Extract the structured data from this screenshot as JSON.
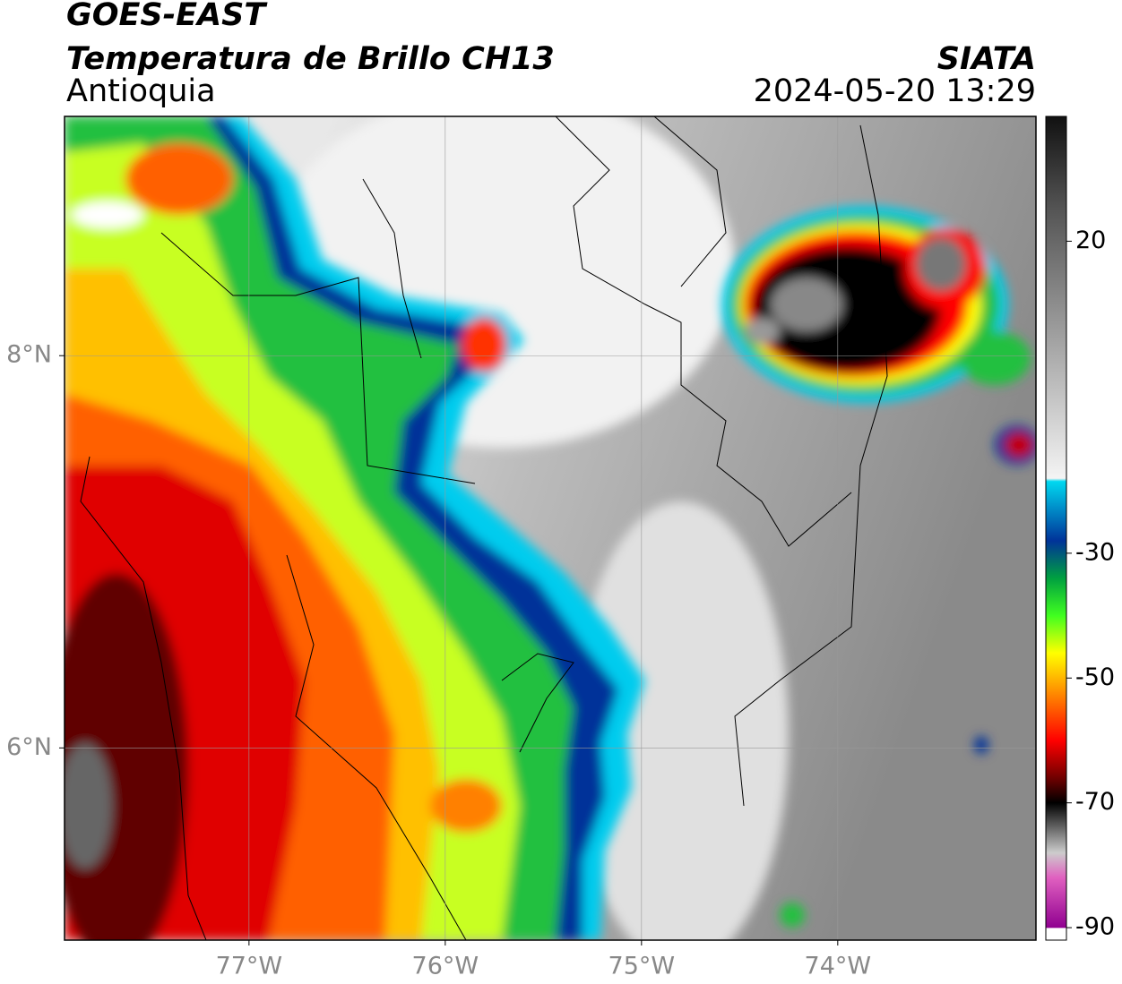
{
  "header": {
    "title": "GOES-EAST",
    "subtitle": "Temperatura de Brillo CH13",
    "region": "Antioquia",
    "source": "SIATA",
    "timestamp": "2024-05-20 13:29"
  },
  "map": {
    "xlim": [
      -77.94,
      -72.99
    ],
    "ylim": [
      5.02,
      9.22
    ],
    "xticks": [
      {
        "value": -77,
        "label": "77°W"
      },
      {
        "value": -76,
        "label": "76°W"
      },
      {
        "value": -75,
        "label": "75°W"
      },
      {
        "value": -74,
        "label": "74°W"
      }
    ],
    "yticks": [
      {
        "value": 8,
        "label": "8°N"
      },
      {
        "value": 6,
        "label": "6°N"
      }
    ],
    "grid": true
  },
  "colorbar": {
    "lim": [
      -92,
      40
    ],
    "ticks": [
      20,
      -30,
      -50,
      -70,
      -90
    ],
    "stops": [
      {
        "value": 40,
        "color": "#111111"
      },
      {
        "value": 25,
        "color": "#555555"
      },
      {
        "value": -18,
        "color": "#f4f4f4"
      },
      {
        "value": -18.5,
        "color": "#00d8f0"
      },
      {
        "value": -28,
        "color": "#003399"
      },
      {
        "value": -34,
        "color": "#00a040"
      },
      {
        "value": -40,
        "color": "#40ff20"
      },
      {
        "value": -46,
        "color": "#ffff00"
      },
      {
        "value": -53,
        "color": "#ff8000"
      },
      {
        "value": -60,
        "color": "#ff0000"
      },
      {
        "value": -66,
        "color": "#700000"
      },
      {
        "value": -70,
        "color": "#000000"
      },
      {
        "value": -78,
        "color": "#cccccc"
      },
      {
        "value": -82,
        "color": "#e060c0"
      },
      {
        "value": -90,
        "color": "#900090"
      },
      {
        "value": -90.1,
        "color": "#ffffff"
      },
      {
        "value": -92,
        "color": "#ffffff"
      }
    ]
  }
}
